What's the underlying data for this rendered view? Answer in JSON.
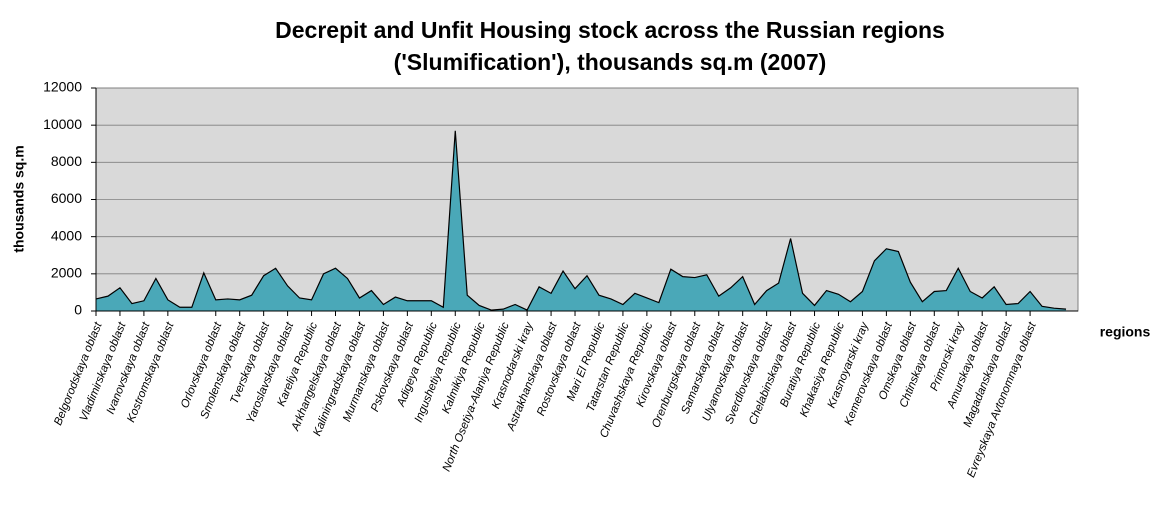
{
  "chart_data": {
    "type": "area",
    "title": [
      "Decrepit and Unfit Housing stock across the Russian regions",
      "('Slumification'), thousands sq.m (2007)"
    ],
    "y_label": "thousands sq.m",
    "x_label": "regions",
    "categories": [
      "Belgorodskaya oblast",
      null,
      "Vladimirskaya oblast",
      null,
      "Ivanovskaya oblast",
      null,
      "Kostromskaya oblast",
      null,
      null,
      null,
      "Orlovskaya oblast",
      null,
      "Smolenskaya oblast",
      null,
      "Tverskaya oblast",
      null,
      "Yaroslavskaya oblast",
      null,
      "Kareliya Republic",
      null,
      "Arkhangelskaya oblast",
      null,
      "Kaliningradskaya oblast",
      null,
      "Murmanskaya oblast",
      null,
      "Pskovskaya oblast",
      null,
      "Adigeya Republic",
      null,
      "Ingushetiya Republic",
      null,
      "Kalmikiya Republic",
      null,
      "North Osetiya-Alaniya Republic",
      null,
      "Krasnodarski kray",
      null,
      "Astrakhanskaya oblast",
      null,
      "Rostovskaya oblast",
      null,
      "Mari El Republic",
      null,
      "Tatarstan Republic",
      null,
      "Chuvashskaya Republic",
      null,
      "Kirovskaya oblast",
      null,
      "Orenburgskaya oblast",
      null,
      "Samarskaya oblast",
      null,
      "Ulyanovskaya oblast",
      null,
      "Sverdlovskaya oblast",
      null,
      "Chelabinskaya oblast",
      null,
      "Buratiya Republic",
      null,
      "Khakasiya Republic",
      null,
      "Krasnoyarski kray",
      null,
      "Kemerovskaya oblast",
      null,
      "Omskaya oblast",
      null,
      "Chtinskaya oblast",
      null,
      "Primorski kray",
      null,
      "Amurskaya oblast",
      null,
      "Magadanskaya oblast",
      null,
      "Evreyskaya Avtonomnaya oblast",
      null,
      null,
      null
    ],
    "values": [
      650,
      800,
      1250,
      400,
      550,
      1750,
      600,
      200,
      200,
      2050,
      600,
      650,
      600,
      850,
      1900,
      2300,
      1350,
      700,
      600,
      2000,
      2300,
      1750,
      700,
      1100,
      350,
      750,
      550,
      550,
      550,
      200,
      9700,
      850,
      300,
      50,
      100,
      350,
      50,
      1300,
      950,
      2150,
      1200,
      1900,
      850,
      650,
      350,
      950,
      700,
      450,
      2250,
      1850,
      1800,
      1950,
      800,
      1250,
      1850,
      350,
      1100,
      1500,
      3900,
      950,
      300,
      1100,
      900,
      500,
      1050,
      2700,
      3350,
      3200,
      1550,
      500,
      1050,
      1100,
      2300,
      1050,
      700,
      1300,
      350,
      400,
      1050,
      250,
      150,
      100
    ],
    "color": "#4aa8b8",
    "ylim": [
      0,
      12000
    ],
    "yticks": [
      0,
      2000,
      4000,
      6000,
      8000,
      10000,
      12000
    ],
    "grid": true
  }
}
